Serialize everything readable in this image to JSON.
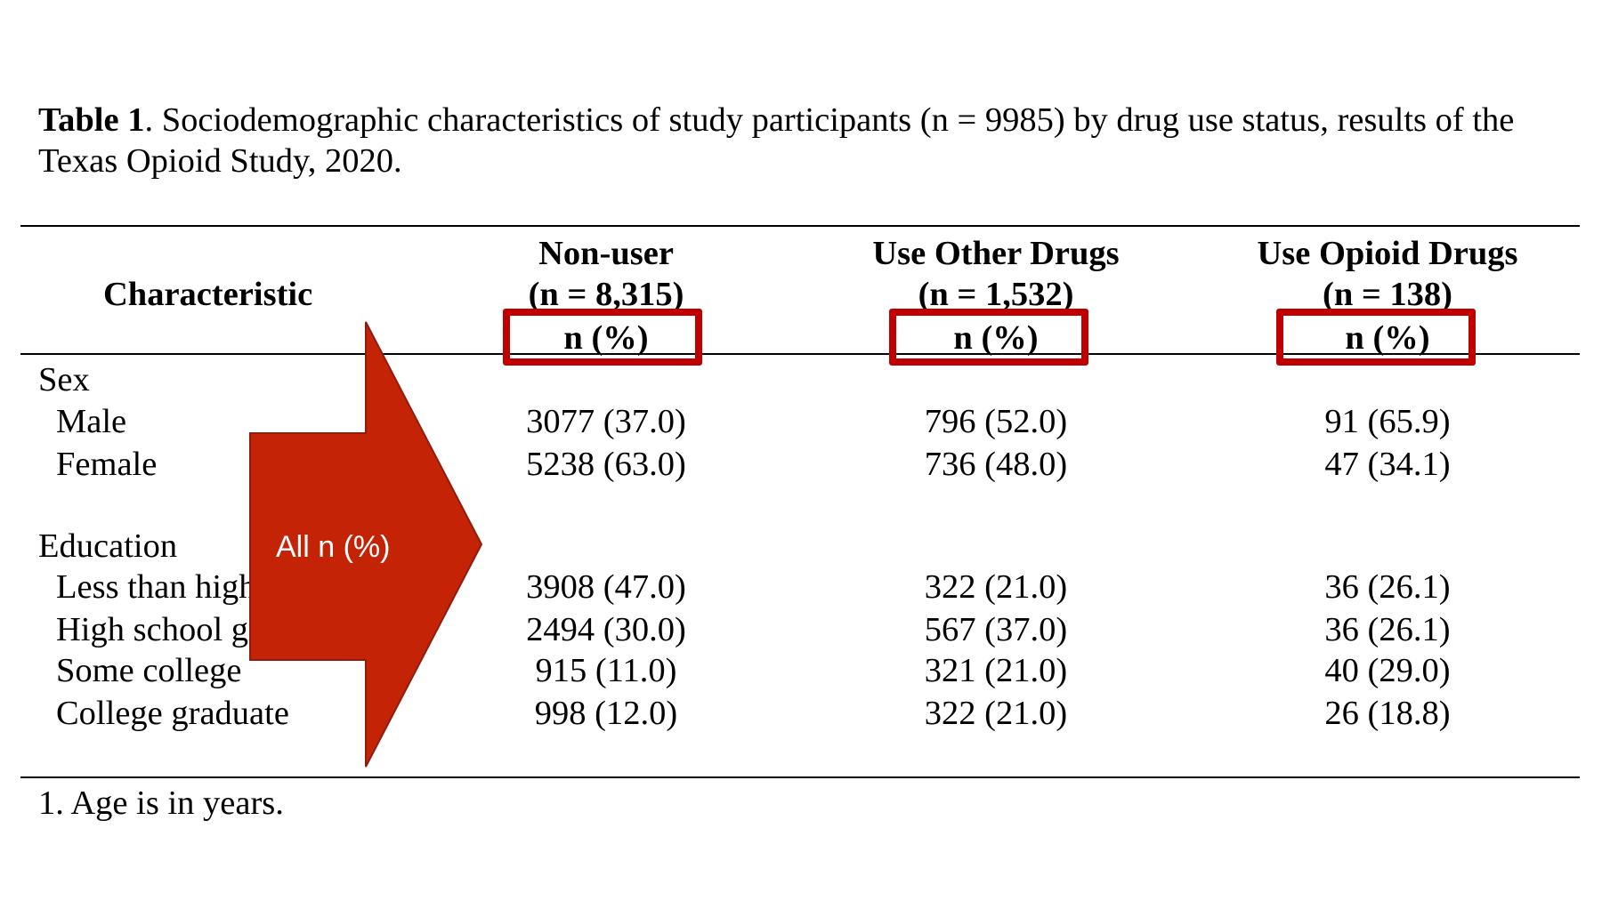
{
  "caption": {
    "label": "Table 1",
    "text": ". Sociodemographic characteristics of study participants (n = 9985) by drug use status, results of the Texas Opioid Study, 2020."
  },
  "table": {
    "stub_header": "Characteristic",
    "columns": [
      {
        "name": "Non-user",
        "n": "(n = 8,315)",
        "unit": "n (%)"
      },
      {
        "name": "Use Other Drugs",
        "n": "(n = 1,532)",
        "unit": "n (%)"
      },
      {
        "name": "Use Opioid Drugs",
        "n": "(n = 138)",
        "unit": "n (%)"
      }
    ],
    "groups": [
      {
        "label": "Sex",
        "rows": [
          {
            "label": "Male",
            "values": [
              "3077 (37.0)",
              "796 (52.0)",
              "91 (65.9)"
            ]
          },
          {
            "label": "Female",
            "values": [
              "5238 (63.0)",
              "736 (48.0)",
              "47 (34.1)"
            ]
          }
        ]
      },
      {
        "label": "Education",
        "rows": [
          {
            "label": "Less than high school",
            "values": [
              "3908 (47.0)",
              "322 (21.0)",
              "36 (26.1)"
            ]
          },
          {
            "label": "High school graduate",
            "values": [
              "2494 (30.0)",
              "567 (37.0)",
              "36 (26.1)"
            ]
          },
          {
            "label": "Some college",
            "values": [
              "915 (11.0)",
              "321 (21.0)",
              "40 (29.0)"
            ]
          },
          {
            "label": "College graduate",
            "values": [
              "998 (12.0)",
              "322 (21.0)",
              "26 (18.8)"
            ]
          }
        ]
      }
    ],
    "footnote": "1. Age is in years."
  },
  "annotation": {
    "arrow_label": "All n (%)",
    "highlight_color": "#c00000",
    "arrow_color": "#c52305"
  }
}
